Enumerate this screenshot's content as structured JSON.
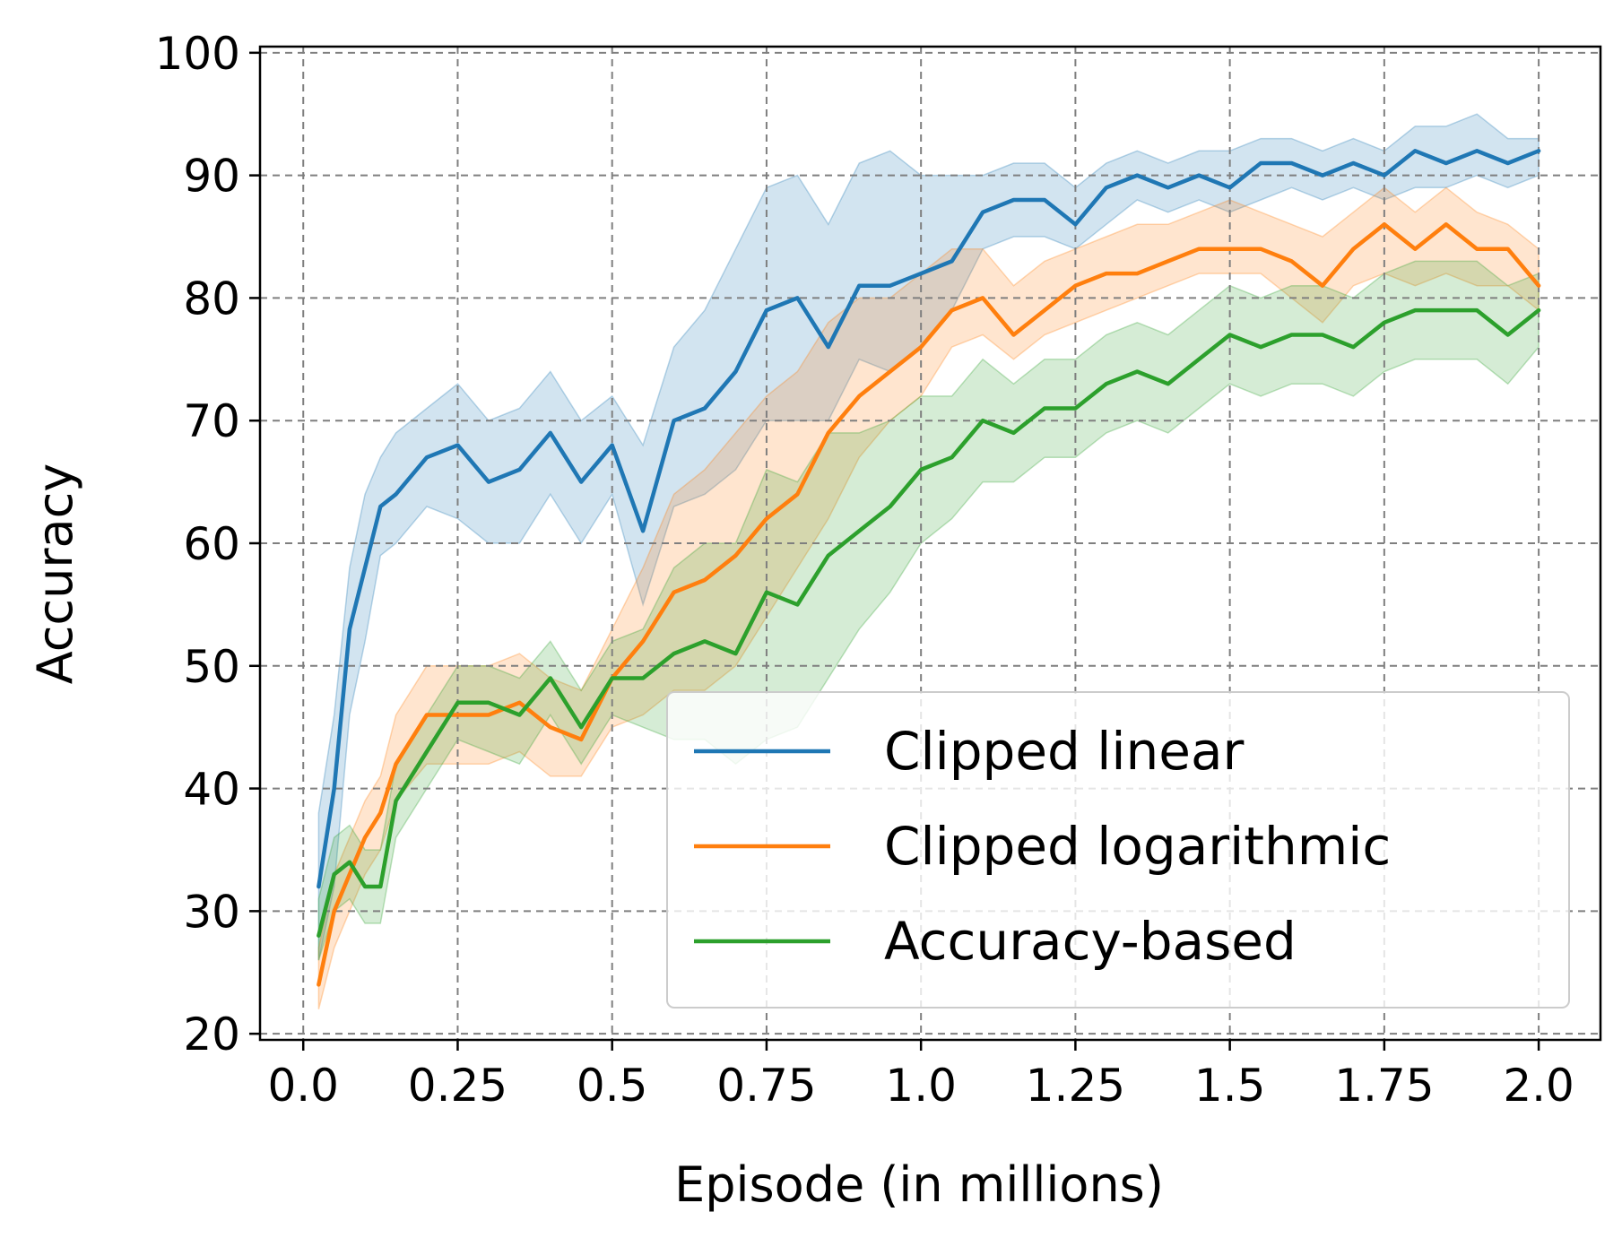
{
  "chart_data": {
    "type": "line",
    "xlabel": "Episode (in millions)",
    "ylabel": "Accuracy",
    "xlim": [
      -0.07,
      2.1
    ],
    "ylim": [
      19.5,
      100.5
    ],
    "xticks": [
      0.0,
      0.25,
      0.5,
      0.75,
      1.0,
      1.25,
      1.5,
      1.75,
      2.0
    ],
    "xtick_labels": [
      "0.0",
      "0.25",
      "0.5",
      "0.75",
      "1.0",
      "1.25",
      "1.5",
      "1.75",
      "2.0"
    ],
    "yticks": [
      20,
      30,
      40,
      50,
      60,
      70,
      80,
      90,
      100
    ],
    "ytick_labels": [
      "20",
      "30",
      "40",
      "50",
      "60",
      "70",
      "80",
      "90",
      "100"
    ],
    "grid": true,
    "legend_position": "bottom-right",
    "series": [
      {
        "name": "Clipped linear",
        "color": "#1f77b4",
        "x": [
          0.025,
          0.05,
          0.075,
          0.1,
          0.125,
          0.15,
          0.2,
          0.25,
          0.3,
          0.35,
          0.4,
          0.45,
          0.5,
          0.55,
          0.6,
          0.65,
          0.7,
          0.75,
          0.8,
          0.85,
          0.9,
          0.95,
          1.0,
          1.05,
          1.1,
          1.15,
          1.2,
          1.25,
          1.3,
          1.35,
          1.4,
          1.45,
          1.5,
          1.55,
          1.6,
          1.65,
          1.7,
          1.75,
          1.8,
          1.85,
          1.9,
          1.95,
          2.0
        ],
        "y": [
          32,
          40,
          53,
          58,
          63,
          64,
          67,
          68,
          65,
          66,
          69,
          65,
          68,
          61,
          70,
          71,
          74,
          79,
          80,
          76,
          81,
          81,
          82,
          83,
          87,
          88,
          88,
          86,
          89,
          90,
          89,
          90,
          89,
          91,
          91,
          90,
          91,
          90,
          92,
          91,
          92,
          91,
          92
        ],
        "lower": [
          26,
          32,
          46,
          52,
          59,
          60,
          63,
          62,
          60,
          60,
          64,
          60,
          64,
          55,
          63,
          64,
          66,
          70,
          70,
          70,
          75,
          74,
          76,
          79,
          84,
          85,
          85,
          84,
          86,
          88,
          87,
          88,
          87,
          88,
          89,
          88,
          89,
          88,
          89,
          89,
          90,
          89,
          90
        ],
        "upper": [
          38,
          46,
          58,
          64,
          67,
          69,
          71,
          73,
          70,
          71,
          74,
          70,
          72,
          68,
          76,
          79,
          84,
          89,
          90,
          86,
          91,
          92,
          90,
          90,
          90,
          91,
          91,
          89,
          91,
          92,
          91,
          92,
          92,
          93,
          93,
          92,
          93,
          92,
          94,
          94,
          95,
          93,
          93
        ]
      },
      {
        "name": "Clipped logarithmic",
        "color": "#ff7f0e",
        "x": [
          0.025,
          0.05,
          0.075,
          0.1,
          0.125,
          0.15,
          0.2,
          0.25,
          0.3,
          0.35,
          0.4,
          0.45,
          0.5,
          0.55,
          0.6,
          0.65,
          0.7,
          0.75,
          0.8,
          0.85,
          0.9,
          0.95,
          1.0,
          1.05,
          1.1,
          1.15,
          1.2,
          1.25,
          1.3,
          1.35,
          1.4,
          1.45,
          1.5,
          1.55,
          1.6,
          1.65,
          1.7,
          1.75,
          1.8,
          1.85,
          1.9,
          1.95,
          2.0
        ],
        "y": [
          24,
          30,
          33,
          36,
          38,
          42,
          46,
          46,
          46,
          47,
          45,
          44,
          49,
          52,
          56,
          57,
          59,
          62,
          64,
          69,
          72,
          74,
          76,
          79,
          80,
          77,
          79,
          81,
          82,
          82,
          83,
          84,
          84,
          84,
          83,
          81,
          84,
          86,
          84,
          86,
          84,
          84,
          81
        ],
        "lower": [
          22,
          27,
          30,
          33,
          35,
          39,
          42,
          42,
          42,
          43,
          41,
          41,
          45,
          46,
          48,
          48,
          50,
          54,
          58,
          62,
          67,
          70,
          72,
          76,
          77,
          75,
          77,
          78,
          79,
          80,
          81,
          82,
          82,
          82,
          80,
          78,
          81,
          82,
          81,
          82,
          81,
          81,
          79
        ],
        "upper": [
          27,
          33,
          36,
          39,
          41,
          46,
          50,
          50,
          50,
          51,
          49,
          48,
          53,
          58,
          64,
          66,
          69,
          72,
          74,
          78,
          80,
          80,
          82,
          84,
          84,
          81,
          83,
          84,
          85,
          86,
          86,
          87,
          88,
          87,
          86,
          85,
          87,
          89,
          87,
          89,
          87,
          86,
          84
        ]
      },
      {
        "name": "Accuracy-based",
        "color": "#2ca02c",
        "x": [
          0.025,
          0.05,
          0.075,
          0.1,
          0.125,
          0.15,
          0.2,
          0.25,
          0.3,
          0.35,
          0.4,
          0.45,
          0.5,
          0.55,
          0.6,
          0.65,
          0.7,
          0.75,
          0.8,
          0.85,
          0.9,
          0.95,
          1.0,
          1.05,
          1.1,
          1.15,
          1.2,
          1.25,
          1.3,
          1.35,
          1.4,
          1.45,
          1.5,
          1.55,
          1.6,
          1.65,
          1.7,
          1.75,
          1.8,
          1.85,
          1.9,
          1.95,
          2.0
        ],
        "y": [
          28,
          33,
          34,
          32,
          32,
          39,
          43,
          47,
          47,
          46,
          49,
          45,
          49,
          49,
          51,
          52,
          51,
          56,
          55,
          59,
          61,
          63,
          66,
          67,
          70,
          69,
          71,
          71,
          73,
          74,
          73,
          75,
          77,
          76,
          77,
          77,
          76,
          78,
          79,
          79,
          79,
          77,
          79
        ],
        "lower": [
          26,
          30,
          31,
          29,
          29,
          36,
          40,
          44,
          43,
          42,
          46,
          42,
          46,
          45,
          44,
          44,
          42,
          44,
          45,
          49,
          53,
          56,
          60,
          62,
          65,
          65,
          67,
          67,
          69,
          70,
          69,
          71,
          73,
          72,
          73,
          73,
          72,
          74,
          75,
          75,
          75,
          73,
          76
        ],
        "upper": [
          31,
          36,
          37,
          35,
          35,
          42,
          46,
          50,
          50,
          49,
          52,
          48,
          52,
          53,
          58,
          60,
          60,
          66,
          65,
          69,
          69,
          70,
          72,
          72,
          75,
          73,
          75,
          75,
          77,
          78,
          77,
          79,
          81,
          80,
          81,
          81,
          80,
          82,
          83,
          83,
          83,
          81,
          82
        ]
      }
    ]
  }
}
